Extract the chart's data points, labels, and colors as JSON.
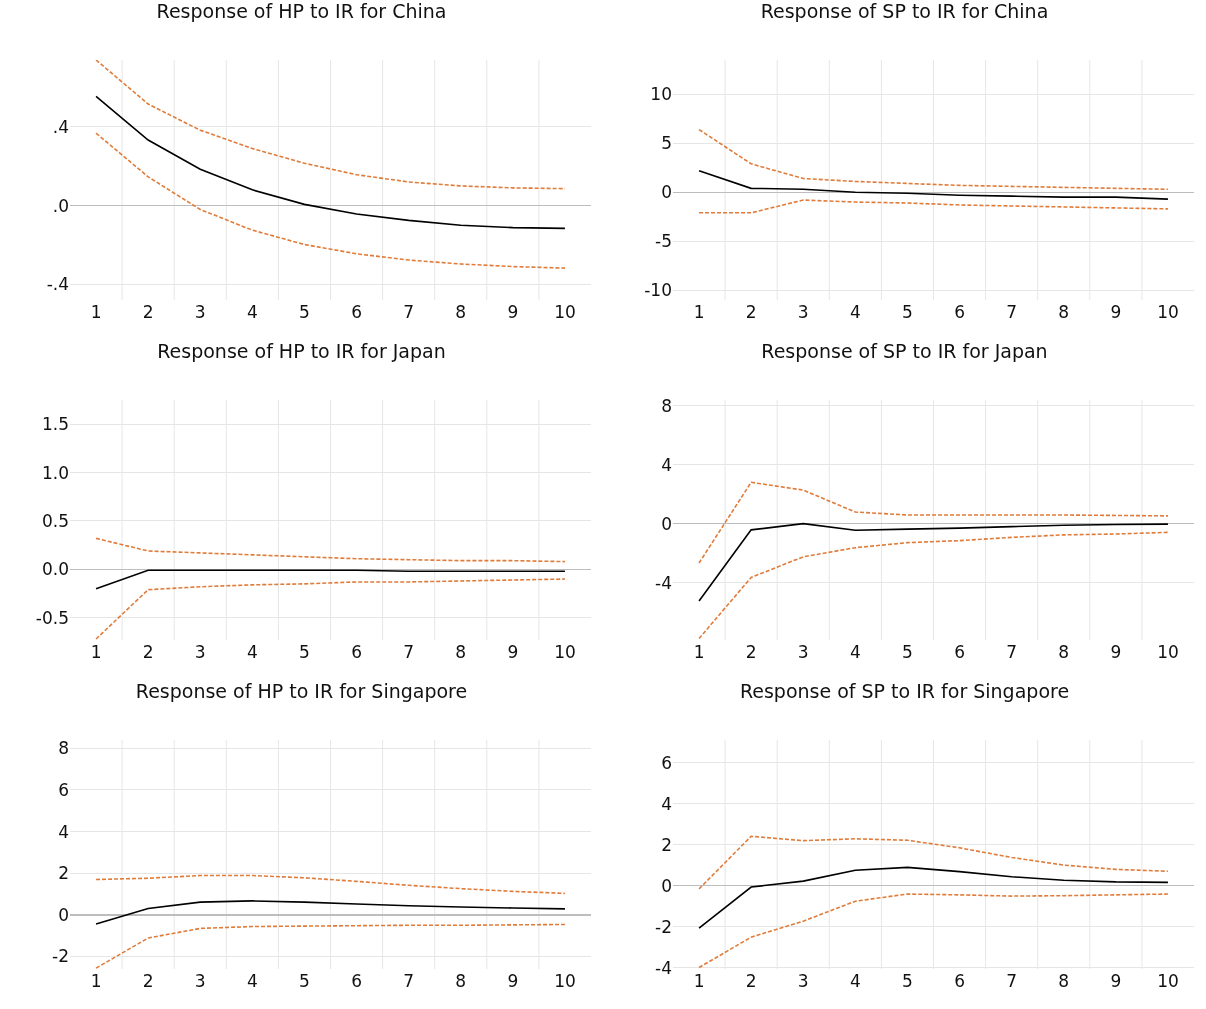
{
  "chart_data": [
    {
      "type": "line",
      "title": "Response of HP to IR for China",
      "categories": [
        "1",
        "2",
        "3",
        "4",
        "5",
        "6",
        "7",
        "8",
        "9",
        "10"
      ],
      "ylim": [
        -0.48,
        0.74
      ],
      "yticks": [
        {
          "value": 0.4,
          "label": ".4"
        },
        {
          "value": 0,
          "label": ".0"
        },
        {
          "value": -0.4,
          "label": "-.4"
        }
      ],
      "grid": true,
      "series": [
        {
          "color": "#000000",
          "line_style": "solid",
          "values": [
            0.555,
            0.333,
            0.185,
            0.08,
            0.006,
            -0.043,
            -0.075,
            -0.1,
            -0.112,
            -0.116
          ]
        },
        {
          "color": "#e07b39",
          "line_style": "dashed",
          "values": [
            0.74,
            0.516,
            0.383,
            0.29,
            0.215,
            0.157,
            0.12,
            0.1,
            0.09,
            0.086
          ]
        },
        {
          "color": "#e07b39",
          "line_style": "dashed",
          "values": [
            0.368,
            0.146,
            -0.02,
            -0.125,
            -0.198,
            -0.245,
            -0.277,
            -0.297,
            -0.31,
            -0.318
          ]
        }
      ]
    },
    {
      "type": "line",
      "title": "Response of SP to IR for China",
      "categories": [
        "1",
        "2",
        "3",
        "4",
        "5",
        "6",
        "7",
        "8",
        "9",
        "10"
      ],
      "ylim": [
        -11,
        13.5
      ],
      "yticks": [
        10,
        5,
        0,
        -5,
        -10
      ],
      "grid": true,
      "series": [
        {
          "color": "#000000",
          "line_style": "solid",
          "values": [
            2.2,
            0.4,
            0.3,
            0.0,
            -0.1,
            -0.3,
            -0.4,
            -0.5,
            -0.5,
            -0.7
          ]
        },
        {
          "color": "#e07b39",
          "line_style": "dashed",
          "values": [
            6.4,
            2.9,
            1.4,
            1.1,
            0.9,
            0.7,
            0.6,
            0.5,
            0.4,
            0.3
          ]
        },
        {
          "color": "#e07b39",
          "line_style": "dashed",
          "values": [
            -2.1,
            -2.1,
            -0.8,
            -1.0,
            -1.1,
            -1.3,
            -1.4,
            -1.5,
            -1.6,
            -1.7
          ]
        }
      ]
    },
    {
      "type": "line",
      "title": "Response of HP to IR for Japan",
      "categories": [
        "1",
        "2",
        "3",
        "4",
        "5",
        "6",
        "7",
        "8",
        "9",
        "10"
      ],
      "ylim": [
        -0.73,
        1.75
      ],
      "yticks": [
        {
          "value": 1.5,
          "label": "1.5"
        },
        {
          "value": 1,
          "label": "1.0"
        },
        {
          "value": 0.5,
          "label": "0.5"
        },
        {
          "value": 0,
          "label": "0.0"
        },
        {
          "value": -0.5,
          "label": "-0.5"
        }
      ],
      "grid": true,
      "series": [
        {
          "color": "#000000",
          "line_style": "solid",
          "values": [
            -0.2,
            -0.01,
            -0.01,
            -0.01,
            -0.01,
            -0.01,
            -0.02,
            -0.02,
            -0.02,
            -0.02
          ]
        },
        {
          "color": "#e07b39",
          "line_style": "dashed",
          "values": [
            0.32,
            0.19,
            0.17,
            0.15,
            0.13,
            0.11,
            0.1,
            0.09,
            0.09,
            0.08
          ]
        },
        {
          "color": "#e07b39",
          "line_style": "dashed",
          "values": [
            -0.72,
            -0.21,
            -0.18,
            -0.16,
            -0.15,
            -0.13,
            -0.13,
            -0.12,
            -0.11,
            -0.1
          ]
        }
      ]
    },
    {
      "type": "line",
      "title": "Response of SP to IR for Japan",
      "categories": [
        "1",
        "2",
        "3",
        "4",
        "5",
        "6",
        "7",
        "8",
        "9",
        "10"
      ],
      "ylim": [
        -7.9,
        8.4
      ],
      "yticks": [
        8,
        4,
        0,
        -4
      ],
      "grid": true,
      "series": [
        {
          "color": "#000000",
          "line_style": "solid",
          "values": [
            -5.25,
            -0.42,
            0,
            -0.45,
            -0.37,
            -0.3,
            -0.2,
            -0.11,
            -0.06,
            -0.03
          ]
        },
        {
          "color": "#e07b39",
          "line_style": "dashed",
          "values": [
            -2.67,
            2.81,
            2.28,
            0.79,
            0.59,
            0.59,
            0.59,
            0.59,
            0.56,
            0.53
          ]
        },
        {
          "color": "#e07b39",
          "line_style": "dashed",
          "values": [
            -7.8,
            -3.65,
            -2.25,
            -1.63,
            -1.29,
            -1.15,
            -0.93,
            -0.76,
            -0.7,
            -0.59
          ]
        }
      ]
    },
    {
      "type": "line",
      "title": "Response of HP to IR for Singapore",
      "categories": [
        "1",
        "2",
        "3",
        "4",
        "5",
        "6",
        "7",
        "8",
        "9",
        "10"
      ],
      "ylim": [
        -2.6,
        8.4
      ],
      "yticks": [
        8,
        6,
        4,
        2,
        0,
        -2
      ],
      "grid": true,
      "series": [
        {
          "color": "#000000",
          "line_style": "solid",
          "values": [
            -0.44,
            0.31,
            0.61,
            0.67,
            0.61,
            0.52,
            0.44,
            0.38,
            0.33,
            0.29
          ]
        },
        {
          "color": "#e07b39",
          "line_style": "dashed",
          "values": [
            1.7,
            1.76,
            1.89,
            1.89,
            1.78,
            1.61,
            1.42,
            1.26,
            1.13,
            1.03
          ]
        },
        {
          "color": "#e07b39",
          "line_style": "dashed",
          "values": [
            -2.56,
            -1.11,
            -0.65,
            -0.56,
            -0.54,
            -0.52,
            -0.5,
            -0.5,
            -0.48,
            -0.46
          ]
        }
      ]
    },
    {
      "type": "line",
      "title": "Response of SP to IR for Singapore",
      "categories": [
        "1",
        "2",
        "3",
        "4",
        "5",
        "6",
        "7",
        "8",
        "9",
        "10"
      ],
      "ylim": [
        -4.05,
        7.1
      ],
      "yticks": [
        6,
        4,
        2,
        0,
        -2,
        -4
      ],
      "grid": true,
      "series": [
        {
          "color": "#000000",
          "line_style": "solid",
          "values": [
            -2.06,
            -0.06,
            0.23,
            0.76,
            0.9,
            0.69,
            0.44,
            0.27,
            0.19,
            0.17
          ]
        },
        {
          "color": "#e07b39",
          "line_style": "dashed",
          "values": [
            -0.15,
            2.41,
            2.2,
            2.29,
            2.22,
            1.85,
            1.38,
            1.01,
            0.8,
            0.71
          ]
        },
        {
          "color": "#e07b39",
          "line_style": "dashed",
          "values": [
            -3.98,
            -2.5,
            -1.72,
            -0.75,
            -0.4,
            -0.44,
            -0.5,
            -0.48,
            -0.44,
            -0.4
          ]
        }
      ]
    }
  ]
}
